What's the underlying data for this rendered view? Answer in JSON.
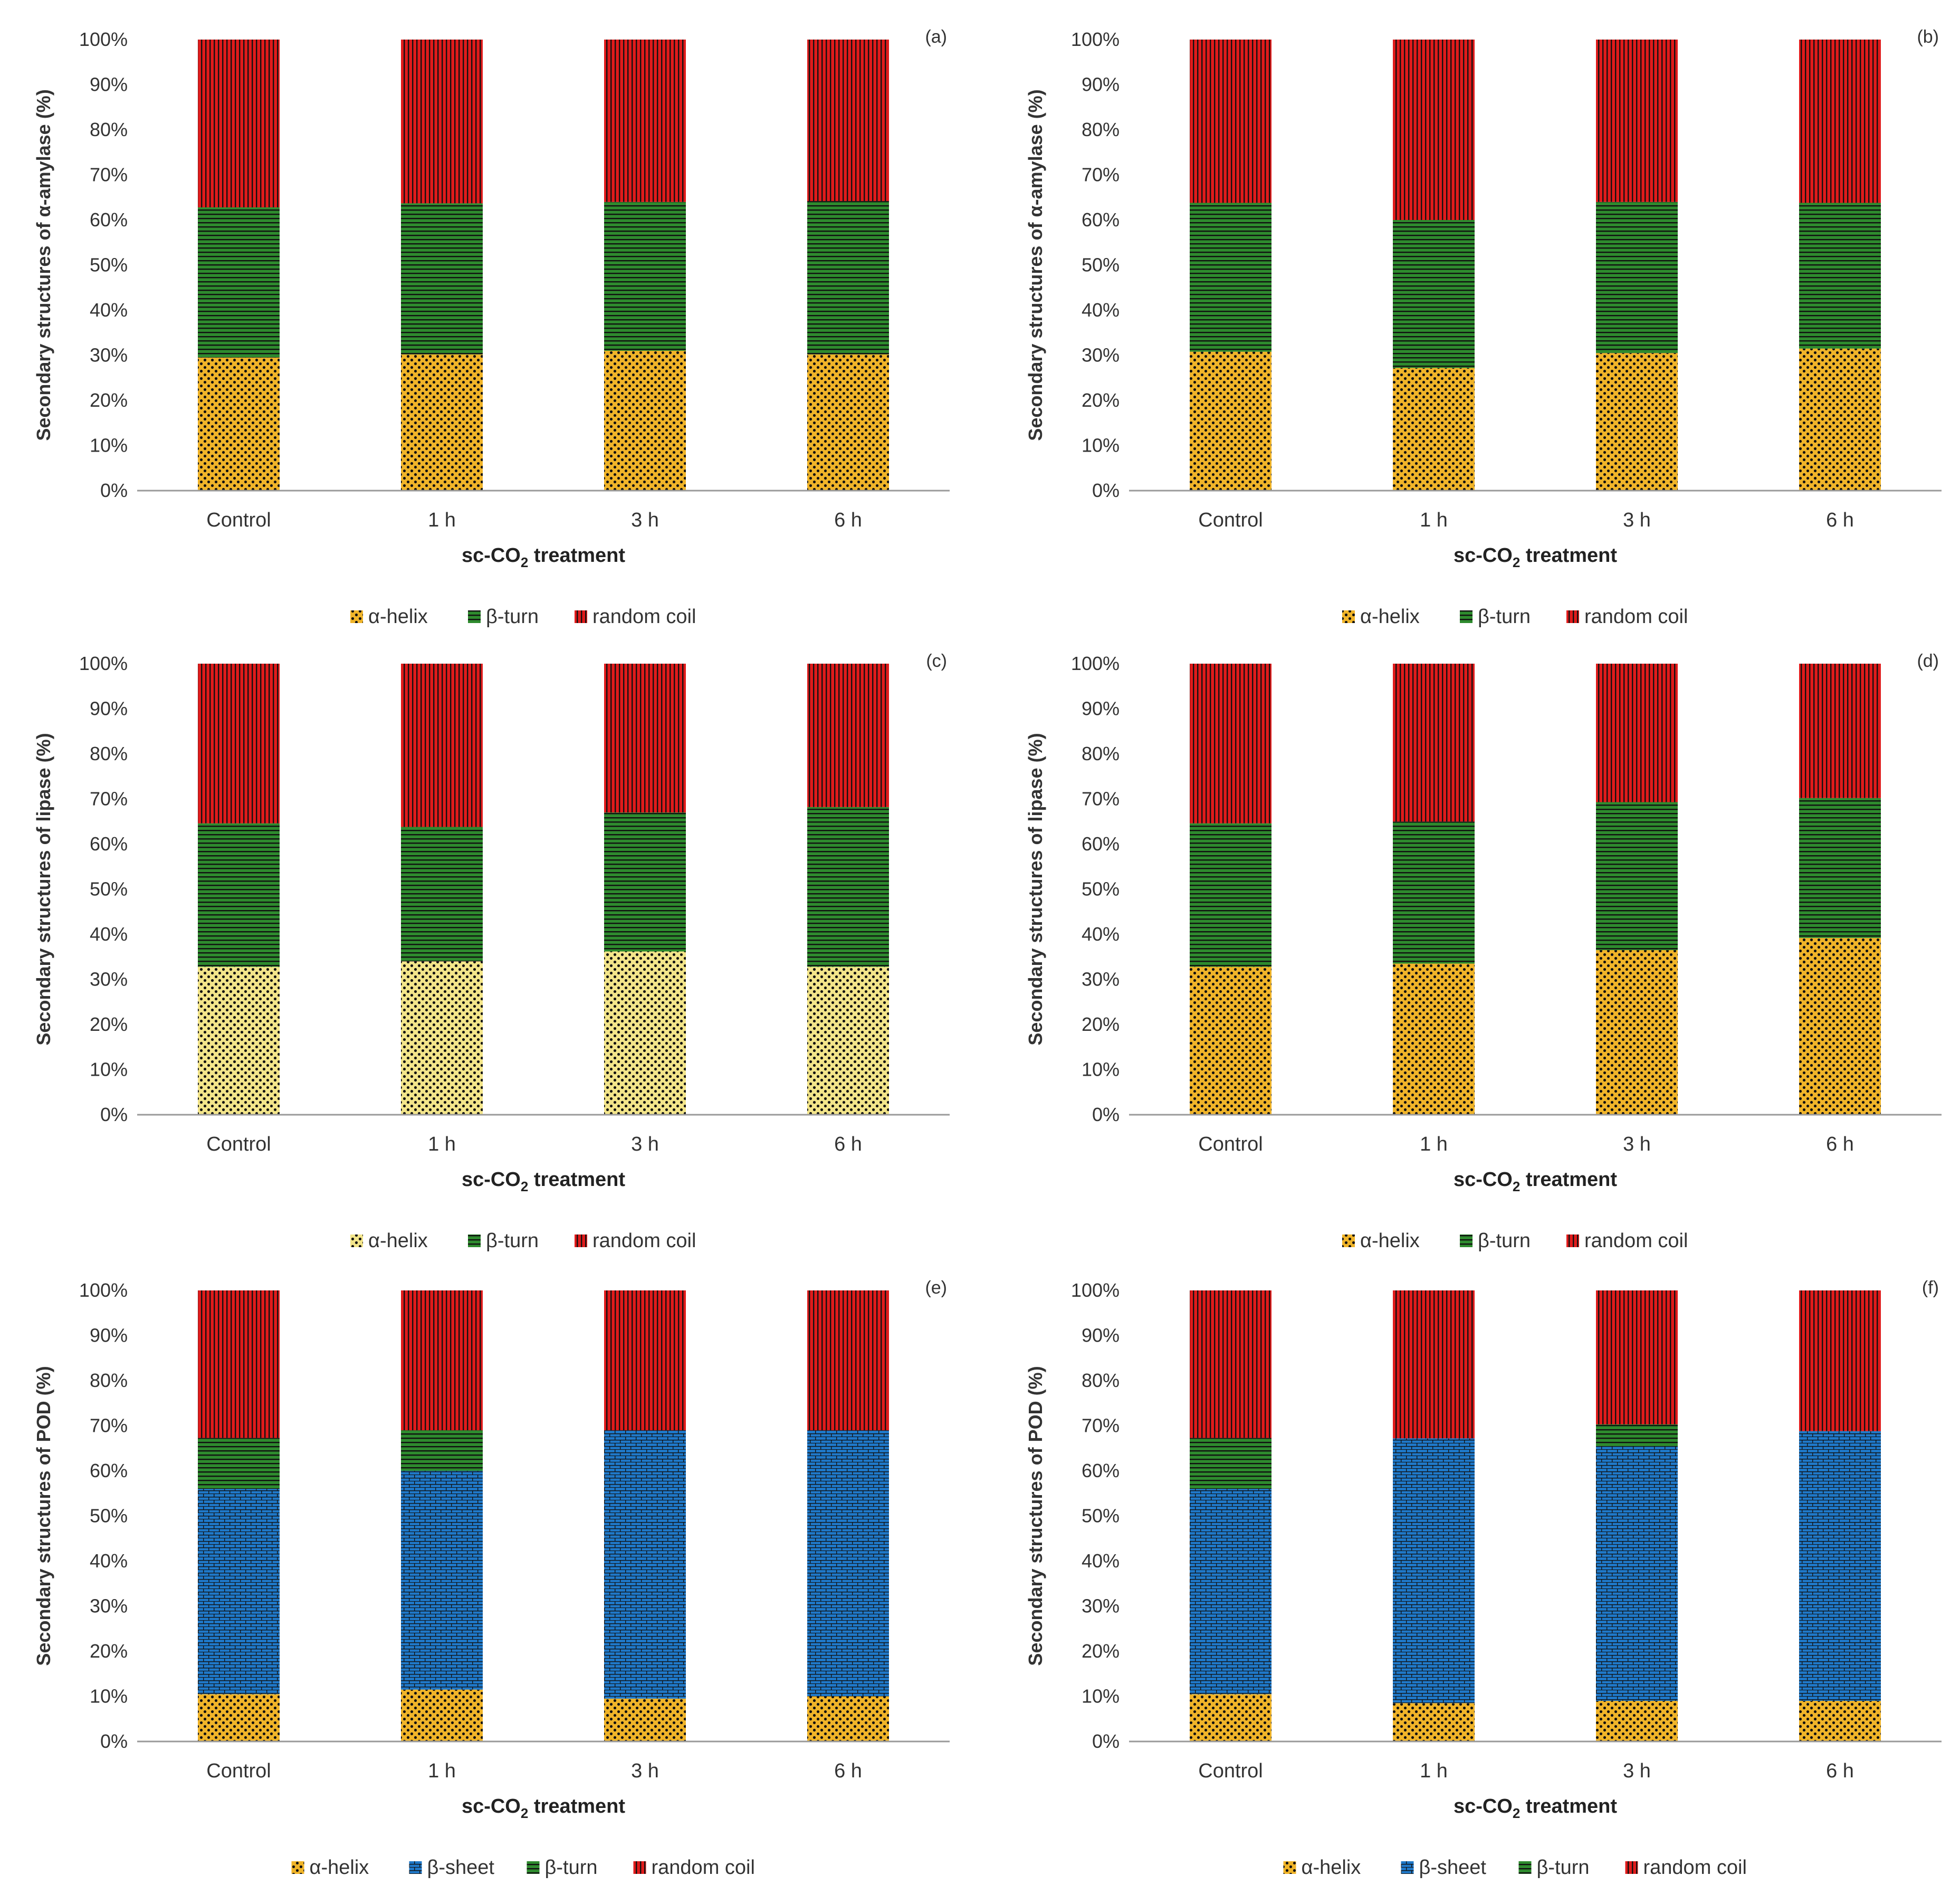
{
  "colors": {
    "alpha_helix": "#f0b429",
    "alpha_helix_pale": "#f3e58a",
    "beta_sheet": "#1f78c8",
    "beta_turn": "#2e8b2e",
    "random_coil": "#e01b1b",
    "pattern_dark": "#111111"
  },
  "chart_data": [
    {
      "type": "bar",
      "stacked": true,
      "panel_label": "(a)",
      "categories": [
        "Control",
        "1 h",
        "3 h",
        "6 h"
      ],
      "series": [
        {
          "name": "α-helix",
          "key": "alpha_helix",
          "values": [
            29.5,
            30.2,
            31.0,
            30.2
          ]
        },
        {
          "name": "β-turn",
          "key": "beta_turn",
          "values": [
            33.3,
            33.5,
            33.0,
            34.0
          ]
        },
        {
          "name": "random coil",
          "key": "random_coil",
          "values": [
            37.2,
            36.3,
            36.0,
            35.8
          ]
        }
      ],
      "ylabel": "Secondary structures of α-amylase (%)",
      "xlabel_prefix": "sc-CO",
      "xlabel_sub": "2",
      "xlabel_suffix": " treatment",
      "yticks": [
        "0%",
        "10%",
        "20%",
        "30%",
        "40%",
        "50%",
        "60%",
        "70%",
        "80%",
        "90%",
        "100%"
      ],
      "ylim": [
        0,
        100
      ]
    },
    {
      "type": "bar",
      "stacked": true,
      "panel_label": "(b)",
      "categories": [
        "Control",
        "1 h",
        "3 h",
        "6 h"
      ],
      "series": [
        {
          "name": "α-helix",
          "key": "alpha_helix",
          "values": [
            30.8,
            27.2,
            30.5,
            31.5
          ]
        },
        {
          "name": "β-turn",
          "key": "beta_turn",
          "values": [
            33.0,
            32.8,
            33.5,
            32.3
          ]
        },
        {
          "name": "random coil",
          "key": "random_coil",
          "values": [
            36.2,
            40.0,
            36.0,
            36.2
          ]
        }
      ],
      "ylabel": "Secondary structures of α-amylase (%)",
      "xlabel_prefix": "sc-CO",
      "xlabel_sub": "2",
      "xlabel_suffix": " treatment",
      "yticks": [
        "0%",
        "10%",
        "20%",
        "30%",
        "40%",
        "50%",
        "60%",
        "70%",
        "80%",
        "90%",
        "100%"
      ],
      "ylim": [
        0,
        100
      ]
    },
    {
      "type": "bar",
      "stacked": true,
      "panel_label": "(c)",
      "categories": [
        "Control",
        "1 h",
        "3 h",
        "6 h"
      ],
      "series": [
        {
          "name": "α-helix",
          "key": "alpha_helix_pale",
          "values": [
            32.8,
            34.0,
            36.2,
            32.8
          ]
        },
        {
          "name": "β-turn",
          "key": "beta_turn",
          "values": [
            31.8,
            29.8,
            30.8,
            35.4
          ]
        },
        {
          "name": "random coil",
          "key": "random_coil",
          "values": [
            35.4,
            36.2,
            33.0,
            31.8
          ]
        }
      ],
      "ylabel": "Secondary structures of lipase (%)",
      "xlabel_prefix": "sc-CO",
      "xlabel_sub": "2",
      "xlabel_suffix": " treatment",
      "yticks": [
        "0%",
        "10%",
        "20%",
        "30%",
        "40%",
        "50%",
        "60%",
        "70%",
        "80%",
        "90%",
        "100%"
      ],
      "ylim": [
        0,
        100
      ]
    },
    {
      "type": "bar",
      "stacked": true,
      "panel_label": "(d)",
      "categories": [
        "Control",
        "1 h",
        "3 h",
        "6 h"
      ],
      "series": [
        {
          "name": "α-helix",
          "key": "alpha_helix",
          "values": [
            32.8,
            33.5,
            36.5,
            39.2
          ]
        },
        {
          "name": "β-turn",
          "key": "beta_turn",
          "values": [
            31.8,
            31.5,
            32.8,
            31.0
          ]
        },
        {
          "name": "random coil",
          "key": "random_coil",
          "values": [
            35.4,
            35.0,
            30.7,
            29.8
          ]
        }
      ],
      "ylabel": "Secondary structures of lipase (%)",
      "xlabel_prefix": "sc-CO",
      "xlabel_sub": "2",
      "xlabel_suffix": " treatment",
      "yticks": [
        "0%",
        "10%",
        "20%",
        "30%",
        "40%",
        "50%",
        "60%",
        "70%",
        "80%",
        "90%",
        "100%"
      ],
      "ylim": [
        0,
        100
      ]
    },
    {
      "type": "bar",
      "stacked": true,
      "panel_label": "(e)",
      "categories": [
        "Control",
        "1 h",
        "3 h",
        "6 h"
      ],
      "series": [
        {
          "name": "α-helix",
          "key": "alpha_helix",
          "values": [
            10.5,
            11.5,
            9.5,
            10.0
          ]
        },
        {
          "name": "β-sheet",
          "key": "beta_sheet",
          "values": [
            45.5,
            48.5,
            59.5,
            59.0
          ]
        },
        {
          "name": "β-turn",
          "key": "beta_turn",
          "values": [
            11.3,
            9.0,
            0.0,
            0.0
          ]
        },
        {
          "name": "random coil",
          "key": "random_coil",
          "values": [
            32.7,
            31.0,
            31.0,
            31.0
          ]
        }
      ],
      "ylabel": "Secondary structures of POD (%)",
      "xlabel_prefix": "sc-CO",
      "xlabel_sub": "2",
      "xlabel_suffix": " treatment",
      "yticks": [
        "0%",
        "10%",
        "20%",
        "30%",
        "40%",
        "50%",
        "60%",
        "70%",
        "80%",
        "90%",
        "100%"
      ],
      "ylim": [
        0,
        100
      ]
    },
    {
      "type": "bar",
      "stacked": true,
      "panel_label": "(f)",
      "categories": [
        "Control",
        "1 h",
        "3 h",
        "6 h"
      ],
      "series": [
        {
          "name": "α-helix",
          "key": "alpha_helix",
          "values": [
            10.5,
            8.5,
            9.0,
            9.0
          ]
        },
        {
          "name": "β-sheet",
          "key": "beta_sheet",
          "values": [
            45.5,
            58.7,
            56.5,
            59.8
          ]
        },
        {
          "name": "β-turn",
          "key": "beta_turn",
          "values": [
            11.3,
            0.0,
            4.8,
            0.0
          ]
        },
        {
          "name": "random coil",
          "key": "random_coil",
          "values": [
            32.7,
            32.8,
            29.7,
            31.2
          ]
        }
      ],
      "ylabel": "Secondary structures of POD (%)",
      "xlabel_prefix": "sc-CO",
      "xlabel_sub": "2",
      "xlabel_suffix": " treatment",
      "yticks": [
        "0%",
        "10%",
        "20%",
        "30%",
        "40%",
        "50%",
        "60%",
        "70%",
        "80%",
        "90%",
        "100%"
      ],
      "ylim": [
        0,
        100
      ]
    }
  ]
}
